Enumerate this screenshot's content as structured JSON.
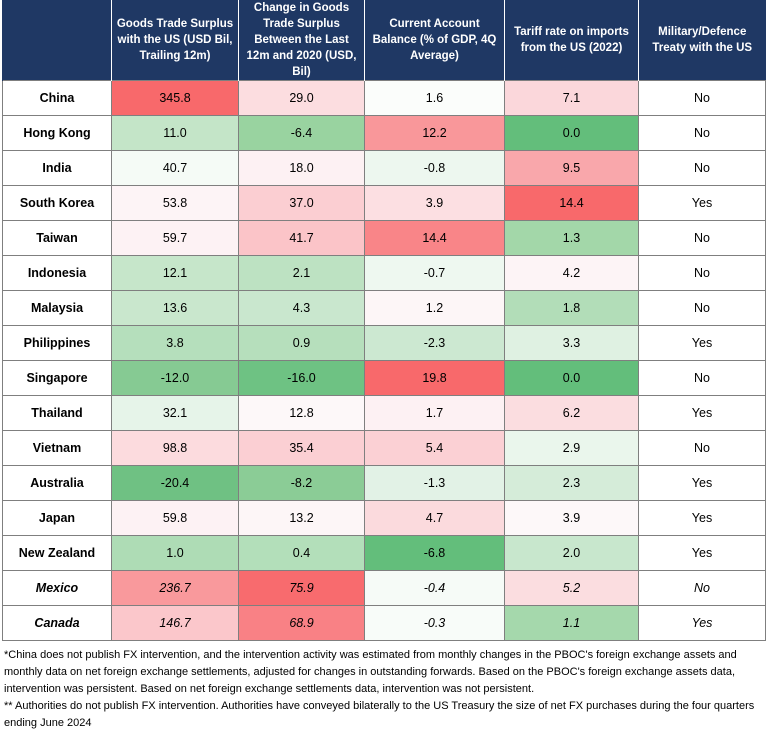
{
  "headers": [
    "",
    "Goods Trade Surplus with the US (USD Bil, Trailing 12m)",
    "Change in Goods Trade Surplus Between the Last 12m and 2020 (USD, Bil)",
    "Current Account Balance (% of GDP, 4Q Average)",
    "Tariff rate on imports from the US (2022)",
    "Military/Defence Treaty with the US"
  ],
  "rows": [
    {
      "country": "China",
      "cells": [
        "345.8",
        "29.0",
        "1.6",
        "7.1",
        "No"
      ],
      "colors": [
        "#f8696b",
        "#fcdde0",
        "#fbfdfb",
        "#fbd7db",
        "#ffffff"
      ]
    },
    {
      "country": "Hong Kong",
      "cells": [
        "11.0",
        "-6.4",
        "12.2",
        "0.0",
        "No"
      ],
      "colors": [
        "#c4e5c8",
        "#99d3a0",
        "#f9979a",
        "#63be7b",
        "#ffffff"
      ]
    },
    {
      "country": "India",
      "cells": [
        "40.7",
        "18.0",
        "-0.8",
        "9.5",
        "No"
      ],
      "colors": [
        "#f5fbf6",
        "#fdf1f3",
        "#edf7ef",
        "#f9a7ab",
        "#ffffff"
      ]
    },
    {
      "country": "South Korea",
      "cells": [
        "53.8",
        "37.0",
        "3.9",
        "14.4",
        "Yes"
      ],
      "colors": [
        "#fdf4f6",
        "#fbced2",
        "#fcdfe2",
        "#f8696b",
        "#ffffff"
      ]
    },
    {
      "country": "Taiwan",
      "cells": [
        "59.7",
        "41.7",
        "14.4",
        "1.3",
        "No"
      ],
      "colors": [
        "#fdf2f4",
        "#fbc4c8",
        "#f98588",
        "#a3d7a9",
        "#ffffff"
      ]
    },
    {
      "country": "Indonesia",
      "cells": [
        "12.1",
        "2.1",
        "-0.7",
        "4.2",
        "No"
      ],
      "colors": [
        "#c6e6ca",
        "#bde2c2",
        "#eef8f0",
        "#fdf4f6",
        "#ffffff"
      ]
    },
    {
      "country": "Malaysia",
      "cells": [
        "13.6",
        "4.3",
        "1.2",
        "1.8",
        "No"
      ],
      "colors": [
        "#c9e7cd",
        "#c9e7ce",
        "#fdf6f7",
        "#b2ddb8",
        "#ffffff"
      ]
    },
    {
      "country": "Philippines",
      "cells": [
        "3.8",
        "0.9",
        "-2.3",
        "3.3",
        "Yes"
      ],
      "colors": [
        "#b5dfbc",
        "#b6dfbc",
        "#cce8d1",
        "#dff1e2",
        "#ffffff"
      ]
    },
    {
      "country": "Singapore",
      "cells": [
        "-12.0",
        "-16.0",
        "19.8",
        "0.0",
        "No"
      ],
      "colors": [
        "#86ca93",
        "#6ec283",
        "#f8696b",
        "#63be7b",
        "#ffffff"
      ]
    },
    {
      "country": "Thailand",
      "cells": [
        "32.1",
        "12.8",
        "1.7",
        "6.2",
        "Yes"
      ],
      "colors": [
        "#e6f4e9",
        "#fdf8f9",
        "#fdf1f3",
        "#fbdde0",
        "#ffffff"
      ]
    },
    {
      "country": "Vietnam",
      "cells": [
        "98.8",
        "35.4",
        "5.4",
        "2.9",
        "No"
      ],
      "colors": [
        "#fcdbde",
        "#fbcfd3",
        "#fbd0d4",
        "#eaf6ec",
        "#ffffff"
      ]
    },
    {
      "country": "Australia",
      "cells": [
        "-20.4",
        "-8.2",
        "-1.3",
        "2.3",
        "Yes"
      ],
      "colors": [
        "#6fc183",
        "#8bcc96",
        "#e2f2e6",
        "#d5ecd9",
        "#ffffff"
      ]
    },
    {
      "country": "Japan",
      "cells": [
        "59.8",
        "13.2",
        "4.7",
        "3.9",
        "Yes"
      ],
      "colors": [
        "#fdf2f4",
        "#fdf6f7",
        "#fbdadd",
        "#fdf8f9",
        "#ffffff"
      ]
    },
    {
      "country": "New Zealand",
      "cells": [
        "1.0",
        "0.4",
        "-6.8",
        "2.0",
        "Yes"
      ],
      "colors": [
        "#aedcb5",
        "#b3dfba",
        "#63be7b",
        "#c8e7cd",
        "#ffffff"
      ]
    },
    {
      "country": "Mexico",
      "italic": true,
      "cells": [
        "236.7",
        "75.9",
        "-0.4",
        "5.2",
        "No"
      ],
      "colors": [
        "#f9999c",
        "#f86b6e",
        "#f6fbf7",
        "#fbdde0",
        "#ffffff"
      ]
    },
    {
      "country": "Canada",
      "italic": true,
      "cells": [
        "146.7",
        "68.9",
        "-0.3",
        "1.1",
        "Yes"
      ],
      "colors": [
        "#fbc7cb",
        "#f98185",
        "#f8fcf9",
        "#a5d8ac",
        "#ffffff"
      ]
    }
  ],
  "notes": [
    "*China does not publish FX intervention, and the intervention activity was estimated from monthly changes in the PBOC's foreign exchange assets and monthly data on net foreign exchange settlements, adjusted for changes in outstanding forwards. Based on the PBOC's foreign exchange assets data, intervention was persistent. Based on net foreign exchange settlements data, intervention was not persistent.",
    "** Authorities do not publish FX intervention. Authorities have conveyed bilaterally to the US  Treasury the size of net FX purchases during the four quarters ending June 2024"
  ]
}
